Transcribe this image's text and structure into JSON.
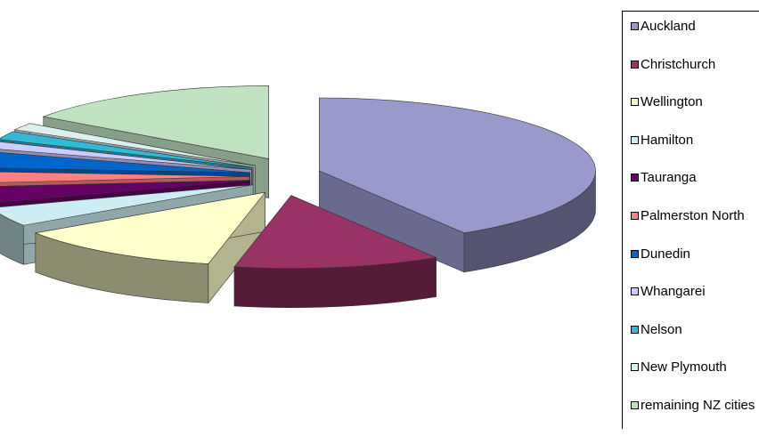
{
  "chart_data": {
    "type": "pie",
    "title": "",
    "style": "3D exploded pie",
    "legend_position": "right",
    "slices": [
      {
        "label": "Auckland",
        "value": 1303068,
        "color": "#9999CC"
      },
      {
        "label": "Christchurch",
        "value": 382200,
        "color": "#993366"
      },
      {
        "label": "Wellington",
        "value": 389700,
        "color": "#FFFFCC"
      },
      {
        "label": "Hamilton",
        "value": 135000,
        "color": "#CCEEF2"
      },
      {
        "label": "Tauranga",
        "value": 115000,
        "color": "#660066"
      },
      {
        "label": "Palmerston North",
        "value": 81000,
        "color": "#FF8080"
      },
      {
        "label": "Dunedin",
        "value": 114000,
        "color": "#0066CC"
      },
      {
        "label": "Whangarei",
        "value": 51000,
        "color": "#CCCCFF"
      },
      {
        "label": "Nelson",
        "value": 60000,
        "color": "#33B8D8"
      },
      {
        "label": "New Plymouth",
        "value": 51000,
        "color": "#DDF0F0"
      },
      {
        "label": "remaining NZ cities",
        "value": 480000,
        "color": "#BFE3C0"
      }
    ]
  }
}
